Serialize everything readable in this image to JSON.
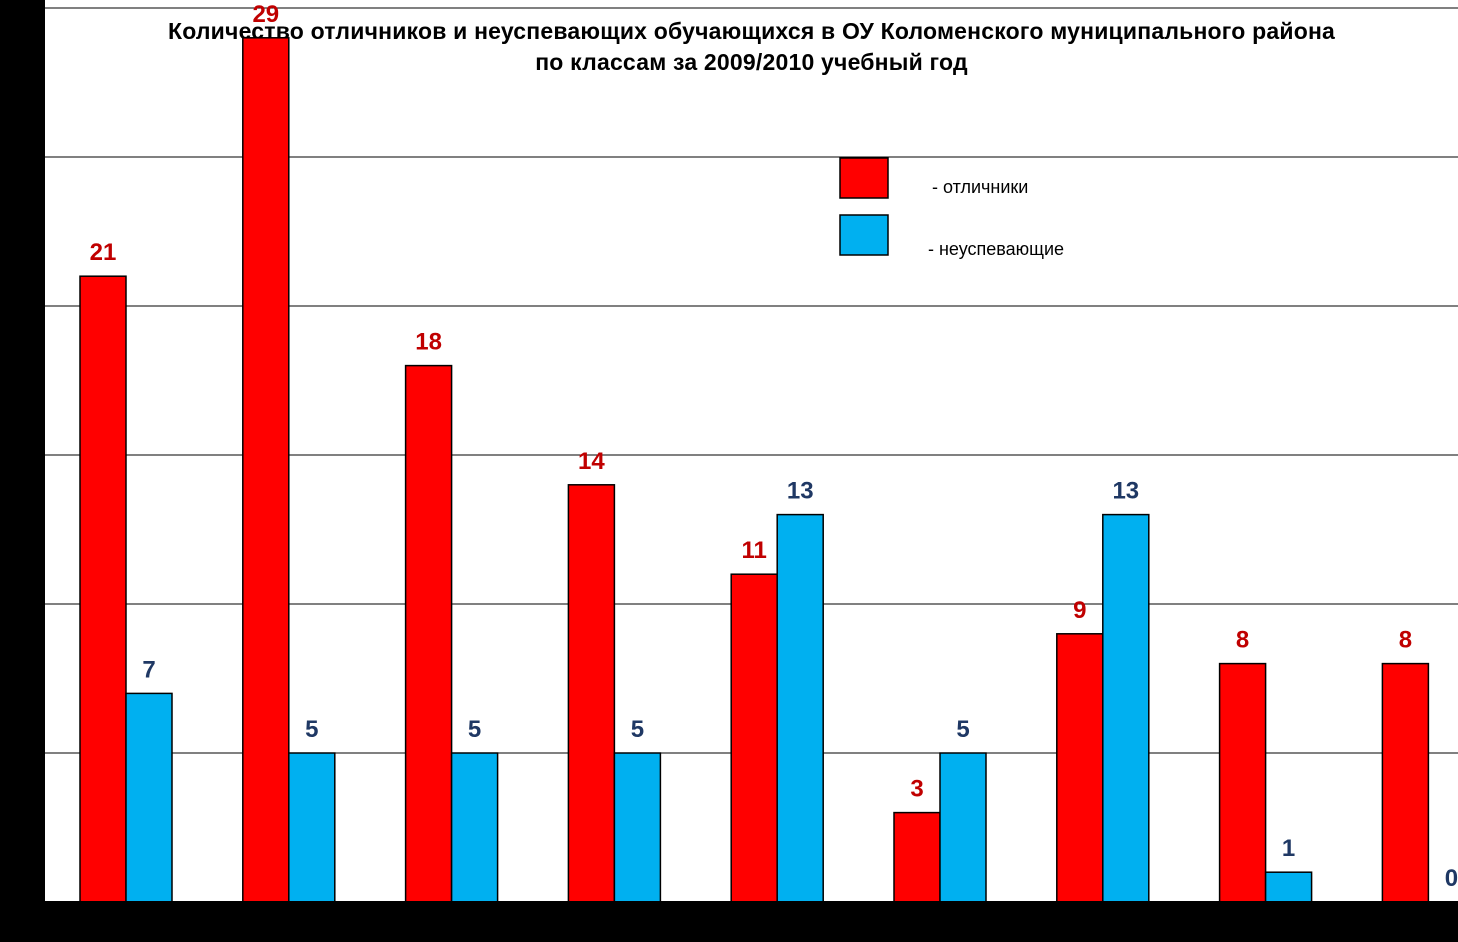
{
  "chart_data": {
    "type": "bar",
    "title_line1": "Количество отличников и неуспевающих обучающихся в ОУ Коломенского муниципального района",
    "title_line2": "по классам за  2009/2010 учебный год",
    "categories": [
      "",
      "",
      "",
      "",
      "",
      "",
      "",
      "",
      ""
    ],
    "series": [
      {
        "name": "- отличники",
        "color": "#FF0000",
        "label_color": "#C00000",
        "values": [
          21,
          29,
          18,
          14,
          11,
          3,
          9,
          8,
          8
        ]
      },
      {
        "name": "- неуспевающие",
        "color": "#00B0F0",
        "label_color": "#1F3864",
        "values": [
          7,
          5,
          5,
          5,
          13,
          5,
          13,
          1,
          0
        ]
      }
    ],
    "ylim": [
      0,
      30
    ],
    "ytick_step": 5,
    "grid": true,
    "legend_position": "top-right"
  }
}
